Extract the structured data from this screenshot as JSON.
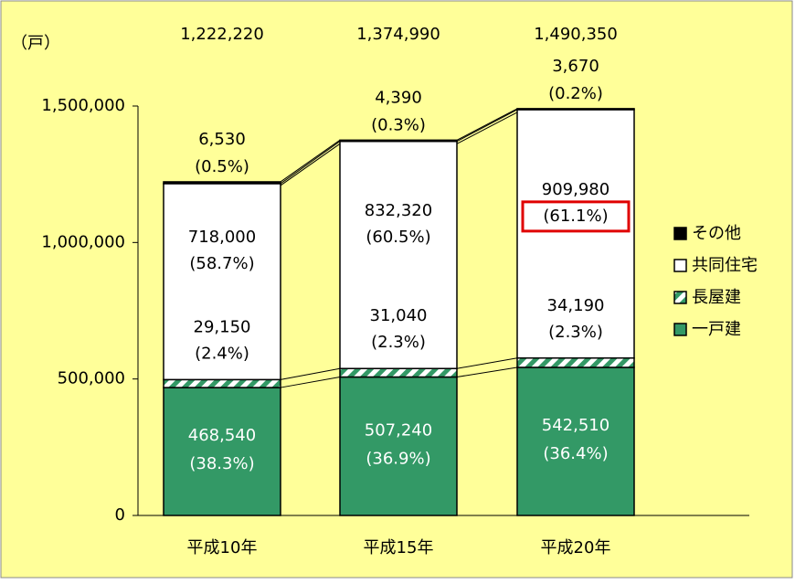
{
  "chart_data": {
    "type": "stacked_bar",
    "y_unit_label": "（戸）",
    "categories": [
      "平成10年",
      "平成15年",
      "平成20年"
    ],
    "series": [
      {
        "name": "一戸建",
        "color": "#339966",
        "values": [
          468540,
          507240,
          542510
        ],
        "value_labels": [
          "468,540",
          "507,240",
          "542,510"
        ],
        "percent_labels": [
          "(38.3%)",
          "(36.9%)",
          "(36.4%)"
        ]
      },
      {
        "name": "長屋建",
        "color": "#339966",
        "pattern": "hatch",
        "values": [
          29150,
          31040,
          34190
        ],
        "value_labels": [
          "29,150",
          "31,040",
          "34,190"
        ],
        "percent_labels": [
          "(2.4%)",
          "(2.3%)",
          "(2.3%)"
        ]
      },
      {
        "name": "共同住宅",
        "color": "#ffffff",
        "values": [
          718000,
          832320,
          909980
        ],
        "value_labels": [
          "718,000",
          "832,320",
          "909,980"
        ],
        "percent_labels": [
          "(58.7%)",
          "(60.5%)",
          "(61.1%)"
        ]
      },
      {
        "name": "その他",
        "color": "#000000",
        "values": [
          6530,
          4390,
          3670
        ],
        "value_labels": [
          "6,530",
          "4,390",
          "3,670"
        ],
        "percent_labels": [
          "(0.5%)",
          "(0.3%)",
          "(0.2%)"
        ]
      }
    ],
    "totals": [
      1222220,
      1374990,
      1490350
    ],
    "total_labels": [
      "1,222,220",
      "1,374,990",
      "1,490,350"
    ],
    "highlight": {
      "series": 2,
      "index": 2,
      "color": "#e00000"
    },
    "ylim": [
      0,
      1500000
    ],
    "yticks": [
      0,
      {
        "value": 500000,
        "label": "500,000"
      },
      {
        "value": 1000000,
        "label": "1,000,000"
      },
      {
        "value": 1500000,
        "label": "1,500,000"
      }
    ]
  }
}
